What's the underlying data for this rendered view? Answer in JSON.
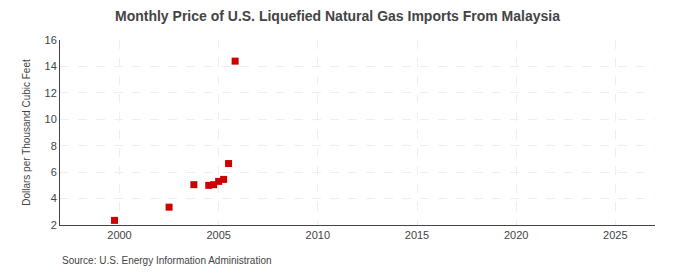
{
  "chart_data": {
    "type": "scatter",
    "title": "Monthly Price of U.S. Liquefied Natural Gas Imports From Malaysia",
    "ylabel": "Dollars per Thousand Cubic Feet",
    "annotations": [
      "Source: U.S. Energy Information Administration"
    ],
    "x": [
      1999.75,
      2002.5,
      2003.75,
      2004.5,
      2004.75,
      2005.0,
      2005.25,
      2005.5,
      2005.83
    ],
    "values": [
      2.35,
      3.35,
      5.05,
      5.0,
      5.05,
      5.3,
      5.45,
      6.65,
      14.4
    ],
    "color": "#cc0000",
    "marker": "square",
    "xlim": [
      1997,
      2027
    ],
    "ylim": [
      2,
      16
    ],
    "xticks": [
      2000,
      2005,
      2010,
      2015,
      2020,
      2025
    ],
    "yticks": [
      2,
      4,
      6,
      8,
      10,
      12,
      14,
      16
    ],
    "grid": true
  }
}
